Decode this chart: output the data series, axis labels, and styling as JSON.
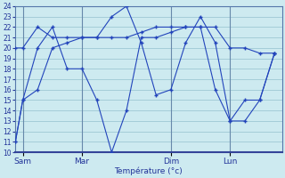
{
  "xlabel": "Température (°c)",
  "bg_color": "#cdeaf0",
  "grid_color": "#9ec8d4",
  "line_color": "#2244bb",
  "vline_color": "#6688aa",
  "ylim": [
    10,
    24
  ],
  "yticks": [
    10,
    11,
    12,
    13,
    14,
    15,
    16,
    17,
    18,
    19,
    20,
    21,
    22,
    23,
    24
  ],
  "xlim": [
    0,
    36
  ],
  "day_labels": [
    "Sam",
    "Mar",
    "Dim",
    "Lun"
  ],
  "day_positions": [
    1,
    9,
    21,
    29
  ],
  "series1_x": [
    0,
    1,
    3,
    5,
    7,
    9,
    11,
    13,
    15,
    17,
    19,
    21,
    23,
    25,
    27,
    29,
    31,
    33,
    35
  ],
  "series1_y": [
    20,
    20,
    22,
    21,
    21,
    21,
    21,
    21,
    21,
    21.5,
    22,
    22,
    22,
    22,
    22,
    20,
    20,
    19.5,
    19.5
  ],
  "series2_x": [
    0,
    1,
    3,
    5,
    7,
    9,
    11,
    13,
    15,
    17,
    19,
    21,
    23,
    25,
    27,
    29,
    31,
    33,
    35
  ],
  "series2_y": [
    11,
    15,
    20,
    22,
    18,
    18,
    15,
    10,
    14,
    21,
    21,
    21.5,
    22,
    22,
    16,
    13,
    13,
    15,
    19.5
  ],
  "series3_x": [
    0,
    1,
    3,
    5,
    7,
    9,
    11,
    13,
    15,
    17,
    19,
    21,
    23,
    25,
    27,
    29,
    31,
    33,
    35
  ],
  "series3_y": [
    11,
    15,
    16,
    20,
    20.5,
    21,
    21,
    23,
    24,
    20.5,
    15.5,
    16,
    20.5,
    23,
    20.5,
    13,
    15,
    15,
    19.5
  ]
}
